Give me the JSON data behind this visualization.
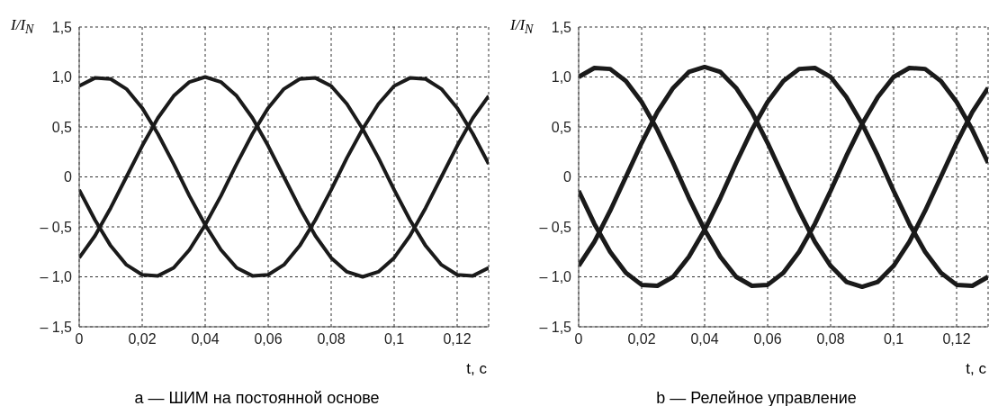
{
  "chart_data": [
    {
      "type": "line",
      "title": "a — ШИМ на постоянной основе",
      "xlabel": "t, с",
      "ylabel": "I/I$_{N}$",
      "grid": true,
      "marker": "none",
      "line_style": "solid",
      "xlim": [
        0,
        0.13
      ],
      "xticks": [
        0,
        {
          "value": 0.02,
          "label": "0,02"
        },
        {
          "value": 0.04,
          "label": "0,04"
        },
        {
          "value": 0.06,
          "label": "0,06"
        },
        {
          "value": 0.08,
          "label": "0,08"
        },
        {
          "value": 0.1,
          "label": "0,1"
        },
        {
          "value": 0.12,
          "label": "0,12"
        }
      ],
      "ylim": [
        -1.5,
        1.5
      ],
      "yticks": [
        {
          "value": -1.5,
          "label": "– 1,5"
        },
        {
          "value": -1,
          "label": "– 1,0"
        },
        {
          "value": -0.5,
          "label": "– 0,5"
        },
        0,
        {
          "value": 0.5,
          "label": "0,5"
        },
        {
          "value": 1,
          "label": "1,0"
        },
        {
          "value": 1.5,
          "label": "1,5"
        }
      ],
      "x": [
        0,
        0.005,
        0.01,
        0.015,
        0.02,
        0.025,
        0.03,
        0.035,
        0.04,
        0.045,
        0.05,
        0.055,
        0.06,
        0.065,
        0.07,
        0.075,
        0.08,
        0.085,
        0.09,
        0.095,
        0.1,
        0.105,
        0.11,
        0.115,
        0.12,
        0.125,
        0.13
      ],
      "series": [
        {
          "color": "#1a1a1a",
          "values": [
            0.91,
            0.99,
            0.98,
            0.88,
            0.69,
            0.43,
            0.13,
            -0.19,
            -0.48,
            -0.73,
            -0.91,
            -0.99,
            -0.98,
            -0.88,
            -0.69,
            -0.43,
            -0.13,
            0.19,
            0.48,
            0.73,
            0.91,
            0.99,
            0.98,
            0.88,
            0.69,
            0.43,
            0.13
          ]
        },
        {
          "color": "#1a1a1a",
          "values": [
            -0.81,
            -0.59,
            -0.31,
            0,
            0.31,
            0.59,
            0.81,
            0.95,
            1,
            0.95,
            0.81,
            0.59,
            0.31,
            0,
            -0.31,
            -0.59,
            -0.81,
            -0.95,
            -1,
            -0.95,
            -0.81,
            -0.59,
            -0.31,
            0,
            0.31,
            0.59,
            0.81
          ]
        },
        {
          "color": "#1a1a1a",
          "values": [
            -0.13,
            -0.43,
            -0.69,
            -0.88,
            -0.98,
            -0.99,
            -0.91,
            -0.73,
            -0.48,
            -0.19,
            0.13,
            0.43,
            0.69,
            0.88,
            0.98,
            0.99,
            0.91,
            0.73,
            0.48,
            0.19,
            -0.13,
            -0.43,
            -0.69,
            -0.88,
            -0.98,
            -0.99,
            -0.91
          ]
        }
      ]
    },
    {
      "type": "line",
      "title": "b — Релейное управление",
      "xlabel": "t, с",
      "ylabel": "I/I$_{N}$",
      "grid": true,
      "marker": "none",
      "line_style": "solid",
      "xlim": [
        0,
        0.13
      ],
      "xticks": [
        0,
        {
          "value": 0.02,
          "label": "0,02"
        },
        {
          "value": 0.04,
          "label": "0,04"
        },
        {
          "value": 0.06,
          "label": "0,06"
        },
        {
          "value": 0.08,
          "label": "0,08"
        },
        {
          "value": 0.1,
          "label": "0,1"
        },
        {
          "value": 0.12,
          "label": "0,12"
        }
      ],
      "ylim": [
        -1.5,
        1.5
      ],
      "yticks": [
        {
          "value": -1.5,
          "label": "– 1,5"
        },
        {
          "value": -1,
          "label": "– 1,0"
        },
        {
          "value": -0.5,
          "label": "– 0,5"
        },
        0,
        {
          "value": 0.5,
          "label": "0,5"
        },
        {
          "value": 1,
          "label": "1,0"
        },
        {
          "value": 1.5,
          "label": "1,5"
        }
      ],
      "x": [
        0,
        0.005,
        0.01,
        0.015,
        0.02,
        0.025,
        0.03,
        0.035,
        0.04,
        0.045,
        0.05,
        0.055,
        0.06,
        0.065,
        0.07,
        0.075,
        0.08,
        0.085,
        0.09,
        0.095,
        0.1,
        0.105,
        0.11,
        0.115,
        0.12,
        0.125,
        0.13
      ],
      "series": [
        {
          "color": "#1a1a1a",
          "values": [
            1.0,
            1.09,
            1.08,
            0.96,
            0.75,
            0.47,
            0.14,
            -0.21,
            -0.53,
            -0.8,
            -1.0,
            -1.09,
            -1.08,
            -0.96,
            -0.75,
            -0.47,
            -0.14,
            0.21,
            0.53,
            0.8,
            1.0,
            1.09,
            1.08,
            0.96,
            0.75,
            0.47,
            0.14
          ]
        },
        {
          "color": "#1a1a1a",
          "values": [
            -0.89,
            -0.65,
            -0.34,
            0,
            0.34,
            0.65,
            0.89,
            1.05,
            1.1,
            1.05,
            0.89,
            0.65,
            0.34,
            0,
            -0.34,
            -0.65,
            -0.89,
            -1.05,
            -1.1,
            -1.05,
            -0.89,
            -0.65,
            -0.34,
            0,
            0.34,
            0.65,
            0.89
          ]
        },
        {
          "color": "#1a1a1a",
          "values": [
            -0.14,
            -0.47,
            -0.75,
            -0.96,
            -1.08,
            -1.09,
            -1.0,
            -0.8,
            -0.53,
            -0.21,
            0.14,
            0.47,
            0.75,
            0.96,
            1.08,
            1.09,
            1.0,
            0.8,
            0.53,
            0.21,
            -0.14,
            -0.47,
            -0.75,
            -0.96,
            -1.08,
            -1.09,
            -1.0
          ]
        }
      ]
    }
  ]
}
